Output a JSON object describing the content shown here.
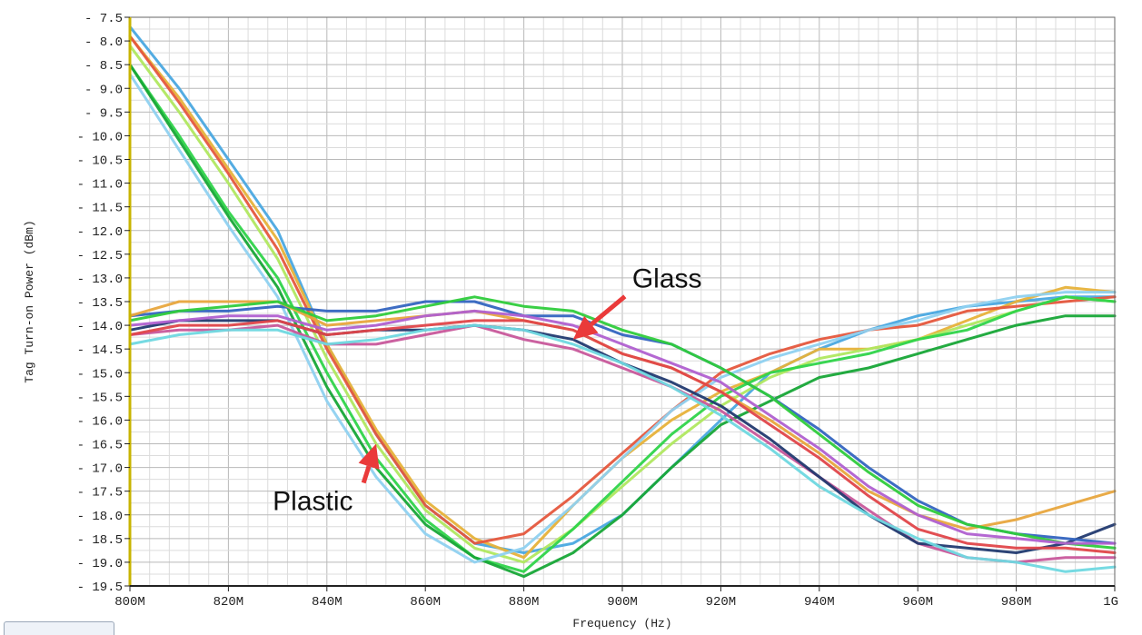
{
  "chart_data": {
    "type": "line",
    "xlabel": "Frequency (Hz)",
    "ylabel": "Tag Turn-on Power (dBm)",
    "xlim": [
      800,
      1000
    ],
    "ylim": [
      -19.5,
      -7.5
    ],
    "x_ticks": [
      {
        "value": 800,
        "label": "800M"
      },
      {
        "value": 820,
        "label": "820M"
      },
      {
        "value": 840,
        "label": "840M"
      },
      {
        "value": 860,
        "label": "860M"
      },
      {
        "value": 880,
        "label": "880M"
      },
      {
        "value": 900,
        "label": "900M"
      },
      {
        "value": 920,
        "label": "920M"
      },
      {
        "value": 940,
        "label": "940M"
      },
      {
        "value": 960,
        "label": "960M"
      },
      {
        "value": 980,
        "label": "980M"
      },
      {
        "value": 1000,
        "label": "1G"
      }
    ],
    "y_ticks": [
      -7.5,
      -8.0,
      -8.5,
      -9.0,
      -9.5,
      -10.0,
      -10.5,
      -11.0,
      -11.5,
      -12.0,
      -12.5,
      -13.0,
      -13.5,
      -14.0,
      -14.5,
      -15.0,
      -15.5,
      -16.0,
      -16.5,
      -17.0,
      -17.5,
      -18.0,
      -18.5,
      -19.0,
      -19.5
    ],
    "grid": true,
    "x": [
      800,
      810,
      820,
      830,
      840,
      850,
      860,
      870,
      880,
      890,
      900,
      910,
      920,
      930,
      940,
      950,
      960,
      970,
      980,
      990,
      1000
    ],
    "series": [
      {
        "color": "#4aa8e0",
        "values": [
          -7.7,
          -9.0,
          -10.5,
          -12.0,
          -14.4,
          -16.3,
          -17.8,
          -18.6,
          -18.8,
          -18.6,
          -18.0,
          -17.0,
          -16.0,
          -15.0,
          -14.5,
          -14.1,
          -13.8,
          -13.6,
          -13.5,
          -13.4,
          -13.4
        ]
      },
      {
        "color": "#e7b23a",
        "values": [
          -7.9,
          -9.2,
          -10.7,
          -12.2,
          -14.4,
          -16.2,
          -17.7,
          -18.5,
          -18.9,
          -17.8,
          -16.8,
          -16.0,
          -15.4,
          -15.0,
          -14.5,
          -14.5,
          -14.3,
          -13.9,
          -13.5,
          -13.2,
          -13.3
        ]
      },
      {
        "color": "#e5573d",
        "values": [
          -7.9,
          -9.3,
          -10.8,
          -12.4,
          -14.5,
          -16.3,
          -17.8,
          -18.6,
          -18.4,
          -17.6,
          -16.7,
          -15.8,
          -15.0,
          -14.6,
          -14.3,
          -14.1,
          -14.0,
          -13.7,
          -13.6,
          -13.5,
          -13.4
        ]
      },
      {
        "color": "#b0e860",
        "values": [
          -8.1,
          -9.5,
          -11.0,
          -12.6,
          -14.7,
          -16.5,
          -17.9,
          -18.7,
          -19.0,
          -18.3,
          -17.4,
          -16.5,
          -15.7,
          -15.1,
          -14.7,
          -14.5,
          -14.3,
          -14.0,
          -13.7,
          -13.4,
          -13.5
        ]
      },
      {
        "color": "#2fd44a",
        "values": [
          -8.5,
          -10.0,
          -11.6,
          -13.0,
          -15.0,
          -16.8,
          -18.1,
          -18.9,
          -19.2,
          -18.3,
          -17.3,
          -16.3,
          -15.5,
          -15.0,
          -14.8,
          -14.6,
          -14.3,
          -14.1,
          -13.7,
          -13.4,
          -13.5
        ]
      },
      {
        "color": "#17a637",
        "values": [
          -8.5,
          -10.1,
          -11.7,
          -13.2,
          -15.3,
          -17.0,
          -18.2,
          -18.9,
          -19.3,
          -18.8,
          -18.0,
          -17.0,
          -16.1,
          -15.6,
          -15.1,
          -14.9,
          -14.6,
          -14.3,
          -14.0,
          -13.8,
          -13.8
        ]
      },
      {
        "color": "#8fd1f0",
        "values": [
          -8.7,
          -10.3,
          -11.9,
          -13.4,
          -15.6,
          -17.2,
          -18.4,
          -19.0,
          -18.7,
          -17.8,
          -16.8,
          -15.8,
          -15.1,
          -14.7,
          -14.4,
          -14.1,
          -13.9,
          -13.6,
          -13.4,
          -13.3,
          -13.3
        ]
      },
      {
        "color": "#c8589b",
        "values": [
          -14.2,
          -14.1,
          -14.1,
          -14.0,
          -14.4,
          -14.4,
          -14.2,
          -14.0,
          -14.3,
          -14.5,
          -14.9,
          -15.3,
          -15.8,
          -16.5,
          -17.2,
          -17.9,
          -18.6,
          -18.9,
          -19.0,
          -18.9,
          -18.9
        ]
      },
      {
        "color": "#223a70",
        "values": [
          -14.1,
          -13.9,
          -13.9,
          -13.9,
          -14.2,
          -14.1,
          -14.1,
          -14.0,
          -14.1,
          -14.3,
          -14.8,
          -15.2,
          -15.7,
          -16.4,
          -17.2,
          -18.0,
          -18.6,
          -18.7,
          -18.8,
          -18.6,
          -18.2
        ]
      },
      {
        "color": "#3465c0",
        "values": [
          -13.8,
          -13.7,
          -13.7,
          -13.6,
          -13.7,
          -13.7,
          -13.5,
          -13.5,
          -13.8,
          -13.8,
          -14.2,
          -14.4,
          -14.9,
          -15.5,
          -16.2,
          -17.0,
          -17.7,
          -18.2,
          -18.4,
          -18.5,
          -18.6
        ]
      },
      {
        "color": "#e8a63e",
        "values": [
          -13.8,
          -13.5,
          -13.5,
          -13.5,
          -14.0,
          -13.9,
          -13.8,
          -13.7,
          -13.9,
          -14.1,
          -14.6,
          -14.9,
          -15.4,
          -16.0,
          -16.7,
          -17.5,
          -18.0,
          -18.3,
          -18.1,
          -17.8,
          -17.5
        ]
      },
      {
        "color": "#2fcc3c",
        "values": [
          -13.9,
          -13.7,
          -13.6,
          -13.5,
          -13.9,
          -13.8,
          -13.6,
          -13.4,
          -13.6,
          -13.7,
          -14.1,
          -14.4,
          -14.9,
          -15.5,
          -16.3,
          -17.1,
          -17.8,
          -18.2,
          -18.4,
          -18.6,
          -18.7
        ]
      },
      {
        "color": "#e0464a",
        "values": [
          -14.2,
          -14.0,
          -14.0,
          -13.9,
          -14.2,
          -14.1,
          -14.0,
          -13.9,
          -13.9,
          -14.1,
          -14.6,
          -14.9,
          -15.4,
          -16.1,
          -16.8,
          -17.6,
          -18.3,
          -18.6,
          -18.7,
          -18.7,
          -18.8
        ]
      },
      {
        "color": "#b060d0",
        "values": [
          -14.0,
          -13.9,
          -13.8,
          -13.8,
          -14.1,
          -14.0,
          -13.8,
          -13.7,
          -13.8,
          -14.0,
          -14.4,
          -14.8,
          -15.2,
          -15.9,
          -16.6,
          -17.4,
          -18.0,
          -18.4,
          -18.5,
          -18.6,
          -18.6
        ]
      },
      {
        "color": "#6fd8e0",
        "values": [
          -14.4,
          -14.2,
          -14.1,
          -14.1,
          -14.4,
          -14.3,
          -14.1,
          -14.0,
          -14.1,
          -14.4,
          -14.8,
          -15.3,
          -15.9,
          -16.6,
          -17.4,
          -18.0,
          -18.5,
          -18.9,
          -19.0,
          -19.2,
          -19.1
        ]
      }
    ],
    "annotations": [
      {
        "text": "Glass",
        "x": 902,
        "y": -13.2,
        "arrow_to": {
          "x": 890,
          "y": -14.3
        }
      },
      {
        "text": "Plastic",
        "x": 829,
        "y": -17.9,
        "arrow_to": {
          "x": 850,
          "y": -16.5
        }
      }
    ]
  }
}
